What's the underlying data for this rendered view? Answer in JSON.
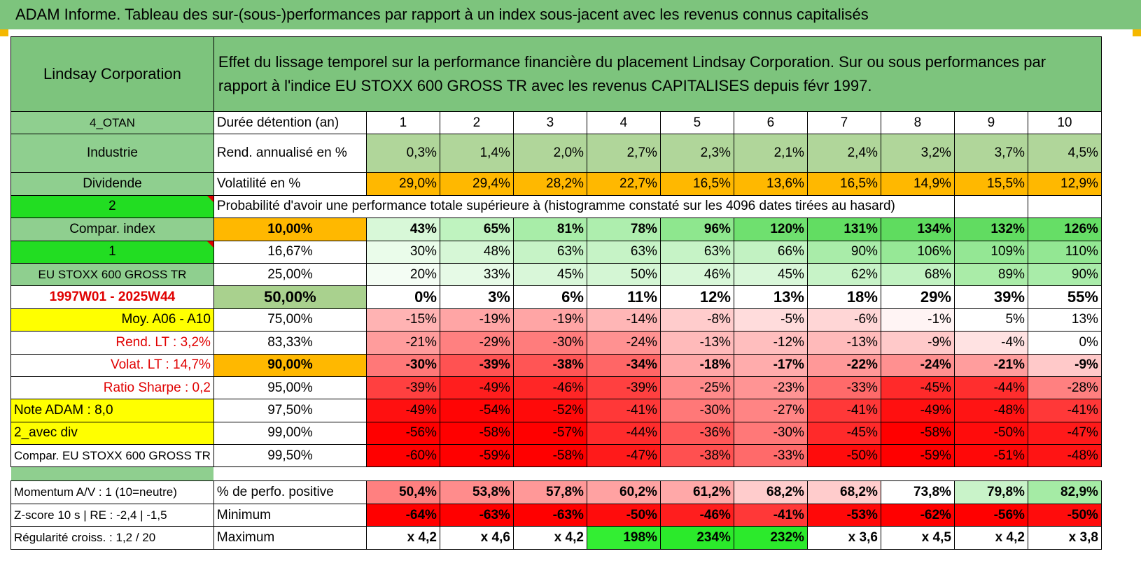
{
  "title": "ADAM Informe. Tableau des sur-(sous-)performances par rapport à un index sous-jacent avec les revenus connus capitalisés",
  "company": "Lindsay Corporation",
  "description": "Effet du lissage temporel sur la performance financière du placement Lindsay Corporation. Sur ou sous performances par rapport à l'indice EU STOXX 600 GROSS TR avec les revenus CAPITALISES depuis févr 1997.",
  "left_labels": {
    "code": "4_OTAN",
    "sector": "Industrie",
    "dividend": "Dividende",
    "two": "2",
    "compar_index": "Compar. index",
    "one": "1",
    "index_name": "EU STOXX 600 GROSS TR",
    "period": "1997W01 - 2025W44",
    "moy": "Moy. A06 - A10",
    "rend_lt": "Rend. LT :    3,2%",
    "volat_lt": "Volat. LT :    14,7%",
    "sharpe": "Ratio Sharpe :    0,2",
    "note": "Note ADAM : 8,0",
    "avec_div": "2_avec div",
    "compar_full": "Compar. EU STOXX 600 GROSS TR",
    "momentum": "Momentum A/V : 1 (10=neutre)",
    "zscore": "Z-score 10 s | RE : -2,4 | -1,5",
    "regularite": "Régularité croiss. : 1,2 / 20"
  },
  "header_rows": {
    "duree_label": "Durée détention (an)",
    "years": [
      "1",
      "2",
      "3",
      "4",
      "5",
      "6",
      "7",
      "8",
      "9",
      "10"
    ],
    "rend_label": "Rend. annualisé en %",
    "rend": [
      "0,3%",
      "1,4%",
      "2,0%",
      "2,7%",
      "2,3%",
      "2,1%",
      "2,4%",
      "3,2%",
      "3,7%",
      "4,5%"
    ],
    "vol_label": "Volatilité en %",
    "vol": [
      "29,0%",
      "29,4%",
      "28,2%",
      "22,7%",
      "16,5%",
      "13,6%",
      "16,5%",
      "14,9%",
      "15,5%",
      "12,9%"
    ]
  },
  "probability_title": "Probabilité d'avoir une performance totale supérieure à (histogramme constaté sur les 4096 dates tirées au hasard)",
  "quantiles": [
    {
      "label": "10,00%",
      "values": [
        "43%",
        "65%",
        "81%",
        "78%",
        "96%",
        "120%",
        "131%",
        "134%",
        "132%",
        "126%"
      ],
      "colors": [
        "#d8f8d8",
        "#bff3bf",
        "#a8eda8",
        "#aeeeae",
        "#8ee78e",
        "#6fe06f",
        "#62dd62",
        "#5fdc5f",
        "#61dc61",
        "#66de66"
      ],
      "bold": true,
      "label_bg": "#ffb800"
    },
    {
      "label": "16,67%",
      "values": [
        "30%",
        "48%",
        "63%",
        "63%",
        "63%",
        "66%",
        "90%",
        "106%",
        "109%",
        "110%"
      ],
      "colors": [
        "#eafcea",
        "#d6f7d6",
        "#c6f3c6",
        "#c6f3c6",
        "#c6f3c6",
        "#c2f2c2",
        "#a9eca9",
        "#96e896",
        "#94e794",
        "#93e793"
      ],
      "bold": false,
      "label_bg": "#ffffff"
    },
    {
      "label": "25,00%",
      "values": [
        "20%",
        "33%",
        "45%",
        "50%",
        "46%",
        "45%",
        "62%",
        "68%",
        "89%",
        "90%"
      ],
      "colors": [
        "#f4fdf4",
        "#e6fae6",
        "#d9f7d9",
        "#d4f6d4",
        "#d8f7d8",
        "#d9f7d9",
        "#c7f3c7",
        "#c1f2c1",
        "#aaeca8",
        "#a9eca9"
      ],
      "bold": false,
      "label_bg": "#ffffff"
    },
    {
      "label": "50,00%",
      "values": [
        "0%",
        "3%",
        "6%",
        "11%",
        "12%",
        "13%",
        "18%",
        "29%",
        "39%",
        "55%"
      ],
      "colors": [
        "#ffffff",
        "#ffffff",
        "#ffffff",
        "#ffffff",
        "#ffffff",
        "#ffffff",
        "#ffffff",
        "#ffffff",
        "#ffffff",
        "#ffffff"
      ],
      "bold": true,
      "big": true,
      "label_bg": "#a9d18e"
    },
    {
      "label": "75,00%",
      "values": [
        "-15%",
        "-19%",
        "-19%",
        "-14%",
        "-8%",
        "-5%",
        "-6%",
        "-1%",
        "5%",
        "13%"
      ],
      "colors": [
        "#ffb3b3",
        "#ffa5a5",
        "#ffa5a5",
        "#ffb6b6",
        "#ffcccc",
        "#ffdcdc",
        "#ffd6d6",
        "#fff4f4",
        "#ffffff",
        "#ffffff"
      ],
      "bold": false,
      "label_bg": "#ffffff"
    },
    {
      "label": "83,33%",
      "values": [
        "-21%",
        "-29%",
        "-30%",
        "-24%",
        "-13%",
        "-12%",
        "-13%",
        "-9%",
        "-4%",
        "0%"
      ],
      "colors": [
        "#ff9c9c",
        "#ff8080",
        "#ff7c7c",
        "#ff9191",
        "#ffbaba",
        "#ffbebe",
        "#ffbaba",
        "#ffc9c9",
        "#ffe2e2",
        "#ffffff"
      ],
      "bold": false,
      "label_bg": "#ffffff"
    },
    {
      "label": "90,00%",
      "values": [
        "-30%",
        "-39%",
        "-38%",
        "-34%",
        "-18%",
        "-17%",
        "-22%",
        "-24%",
        "-21%",
        "-9%"
      ],
      "colors": [
        "#ff7878",
        "#ff5252",
        "#ff5555",
        "#ff6666",
        "#ffa8a8",
        "#ffacac",
        "#ff9898",
        "#ff9090",
        "#ff9d9d",
        "#ffc9c9"
      ],
      "bold": true,
      "label_bg": "#ffb800"
    },
    {
      "label": "95,00%",
      "values": [
        "-39%",
        "-49%",
        "-46%",
        "-39%",
        "-25%",
        "-23%",
        "-33%",
        "-45%",
        "-44%",
        "-28%"
      ],
      "colors": [
        "#ff4040",
        "#ff1e1e",
        "#ff2626",
        "#ff4040",
        "#ff8a8a",
        "#ff9494",
        "#ff6a6a",
        "#ff2a2a",
        "#ff2e2e",
        "#ff8080"
      ],
      "bold": false,
      "label_bg": "#ffffff"
    },
    {
      "label": "97,50%",
      "values": [
        "-49%",
        "-54%",
        "-52%",
        "-41%",
        "-30%",
        "-27%",
        "-41%",
        "-49%",
        "-48%",
        "-41%"
      ],
      "colors": [
        "#ff1010",
        "#ff0505",
        "#ff0a0a",
        "#ff3838",
        "#ff7878",
        "#ff8484",
        "#ff3838",
        "#ff1010",
        "#ff1414",
        "#ff3838"
      ],
      "bold": false,
      "label_bg": "#ffffff"
    },
    {
      "label": "99,00%",
      "values": [
        "-56%",
        "-58%",
        "-57%",
        "-44%",
        "-36%",
        "-30%",
        "-45%",
        "-58%",
        "-50%",
        "-47%"
      ],
      "colors": [
        "#ff0000",
        "#ff0000",
        "#ff0000",
        "#ff2c2c",
        "#ff5858",
        "#ff7878",
        "#ff2a2a",
        "#ff0000",
        "#ff0c0c",
        "#ff1a1a"
      ],
      "bold": false,
      "label_bg": "#ffffff"
    },
    {
      "label": "99,50%",
      "values": [
        "-60%",
        "-59%",
        "-58%",
        "-47%",
        "-38%",
        "-33%",
        "-50%",
        "-59%",
        "-51%",
        "-48%"
      ],
      "colors": [
        "#ff0000",
        "#ff0000",
        "#ff0000",
        "#ff1a1a",
        "#ff5050",
        "#ff6a6a",
        "#ff0c0c",
        "#ff0000",
        "#ff0808",
        "#ff1414"
      ],
      "bold": false,
      "label_bg": "#ffffff"
    }
  ],
  "bottom_rows": [
    {
      "label": "% de perfo. positive",
      "values": [
        "50,4%",
        "53,8%",
        "57,8%",
        "60,2%",
        "61,2%",
        "68,2%",
        "68,2%",
        "73,8%",
        "79,8%",
        "82,9%"
      ],
      "colors": [
        "#ff8080",
        "#ff8c8c",
        "#ff9898",
        "#ffa2a2",
        "#ffa8a8",
        "#ffcccc",
        "#ffcccc",
        "#ffffff",
        "#c9f3c9",
        "#a5eba5"
      ]
    },
    {
      "label": "Minimum",
      "values": [
        "-64%",
        "-63%",
        "-63%",
        "-50%",
        "-46%",
        "-41%",
        "-53%",
        "-62%",
        "-56%",
        "-50%"
      ],
      "colors": [
        "#ff0000",
        "#ff0000",
        "#ff0000",
        "#ff0c0c",
        "#ff1e1e",
        "#ff3838",
        "#ff0808",
        "#ff0000",
        "#ff0000",
        "#ff0c0c"
      ]
    },
    {
      "label": "Maximum",
      "values": [
        "x 4,2",
        "x 4,6",
        "x 4,2",
        "198%",
        "234%",
        "232%",
        "x 3,6",
        "x 4,5",
        "x 4,2",
        "x 3,8"
      ],
      "colors": [
        "#ffffff",
        "#ffffff",
        "#ffffff",
        "#33ee33",
        "#2bea2b",
        "#2cea2c",
        "#ffffff",
        "#ffffff",
        "#ffffff",
        "#ffffff"
      ]
    }
  ]
}
